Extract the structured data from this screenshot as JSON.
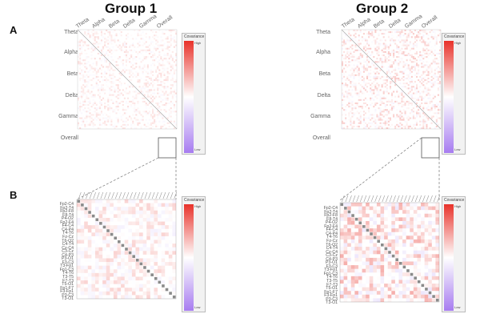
{
  "groups": [
    {
      "title": "Group 1"
    },
    {
      "title": "Group 2"
    }
  ],
  "panels": {
    "a": "A",
    "b": "B"
  },
  "bands": [
    "Theta",
    "Alpha",
    "Beta",
    "Delta",
    "Gamma",
    "Overall"
  ],
  "channel_pairs": [
    "Fp2-C4",
    "Fp2-T4",
    "Fp2-F8",
    "F8-T4",
    "P4-O2",
    "Fp2-F4",
    "F4-C4",
    "C4-P4",
    "T4-T6",
    "Fz-Cz",
    "T6-O2",
    "C4-T4",
    "Cz-C4",
    "C3-Cz",
    "C4-P3",
    "P3-O1",
    "F3-C3",
    "T3-Fp1",
    "Fp1-C3",
    "T4-T6",
    "T3-T5",
    "F7-T3",
    "T5-O1",
    "Fp1-F7",
    "F3-Fp1",
    "P3-C3",
    "T3-O1"
  ],
  "colorbar": {
    "title": "Covariance",
    "high": "High",
    "low": "Low"
  },
  "colors": {
    "positive": "#e8322a",
    "negative": "#a77cf0",
    "neutral": "#ffffff",
    "diagonal": "#888888",
    "frame": "#555555"
  }
}
